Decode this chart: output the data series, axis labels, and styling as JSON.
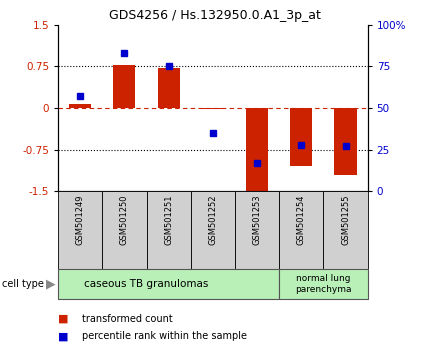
{
  "title": "GDS4256 / Hs.132950.0.A1_3p_at",
  "samples": [
    "GSM501249",
    "GSM501250",
    "GSM501251",
    "GSM501252",
    "GSM501253",
    "GSM501254",
    "GSM501255"
  ],
  "transformed_counts": [
    0.08,
    0.78,
    0.72,
    -0.02,
    -1.5,
    -1.05,
    -1.2
  ],
  "percentile_ranks": [
    57,
    83,
    75,
    35,
    17,
    28,
    27
  ],
  "ylim": [
    -1.5,
    1.5
  ],
  "yticks_left": [
    -1.5,
    -0.75,
    0,
    0.75,
    1.5
  ],
  "yticks_right": [
    0,
    25,
    50,
    75,
    100
  ],
  "dotted_lines": [
    -0.75,
    0.75
  ],
  "bar_color": "#cc2200",
  "dot_color": "#0000cc",
  "bar_width": 0.5,
  "tick_label_color_left": "#cc2200",
  "tick_label_color_right": "#0000cc",
  "cell_type_1_label": "caseous TB granulomas",
  "cell_type_1_samples": 5,
  "cell_type_2_label": "normal lung\nparenchyma",
  "cell_type_2_samples": 2,
  "cell_type_color": "#b8f0b8",
  "sample_box_color": "#d0d0d0",
  "legend_bar_label": "transformed count",
  "legend_dot_label": "percentile rank within the sample"
}
